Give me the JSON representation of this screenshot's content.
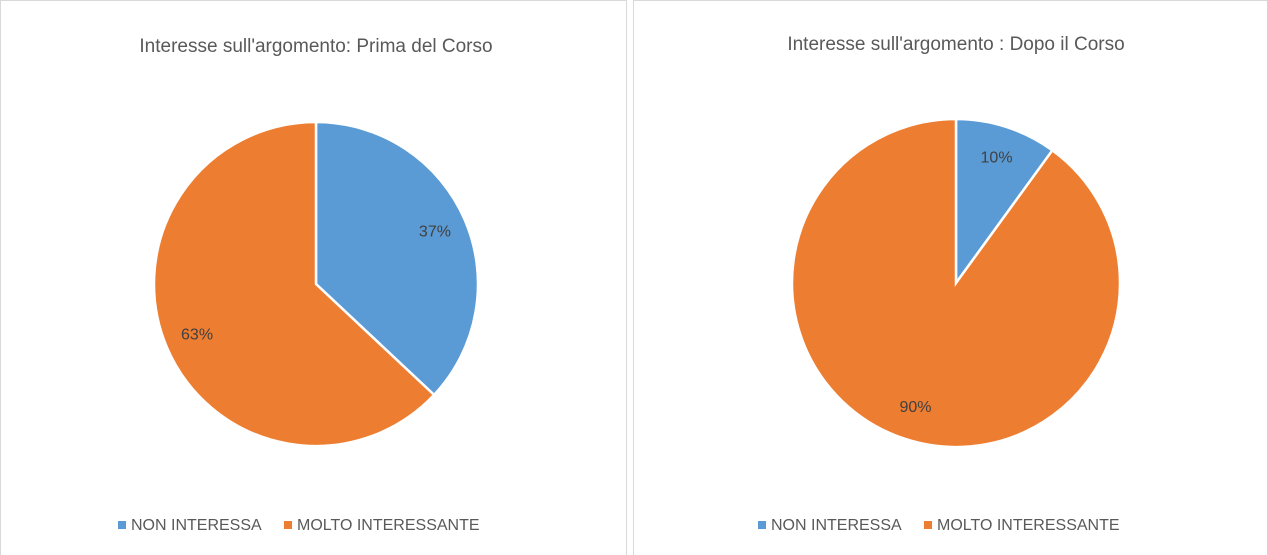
{
  "chart_data": [
    {
      "type": "pie",
      "title": "Interesse sull'argomento: Prima del Corso",
      "categories": [
        "NON INTERESSA",
        "MOLTO INTERESSANTE"
      ],
      "values": [
        37,
        63
      ],
      "value_labels": [
        "37%",
        "63%"
      ],
      "colors": [
        "#5b9bd5",
        "#ed7d31"
      ],
      "legend": "bottom"
    },
    {
      "type": "pie",
      "title": "Interesse sull'argomento : Dopo il Corso",
      "categories": [
        "NON INTERESSA",
        "MOLTO INTERESSANTE"
      ],
      "values": [
        10,
        90
      ],
      "value_labels": [
        "10%",
        "90%"
      ],
      "colors": [
        "#5b9bd5",
        "#ed7d31"
      ],
      "legend": "bottom"
    }
  ]
}
